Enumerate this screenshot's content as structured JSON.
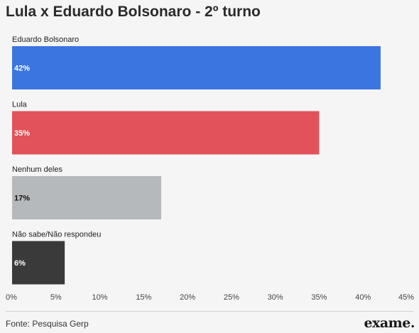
{
  "chart_data": {
    "type": "bar",
    "orientation": "horizontal",
    "title": "Lula x Eduardo Bolsonaro - 2º turno",
    "categories": [
      "Eduardo Bolsonaro",
      "Lula",
      "Nenhum deles",
      "Não sabe/Não respondeu"
    ],
    "values": [
      42,
      35,
      17,
      6
    ],
    "data_labels": [
      "42%",
      "35%",
      "17%",
      "6%"
    ],
    "colors": [
      "#3b76e0",
      "#e2525a",
      "#b6b9bb",
      "#3a3a3a"
    ],
    "label_colors": [
      "#ffffff",
      "#ffffff",
      "#111111",
      "#ffffff"
    ],
    "xlim": [
      0,
      45
    ],
    "xticks": [
      0,
      5,
      10,
      15,
      20,
      25,
      30,
      35,
      40,
      45
    ],
    "xtick_labels": [
      "0%",
      "5%",
      "10%",
      "15%",
      "20%",
      "25%",
      "30%",
      "35%",
      "40%",
      "45%"
    ],
    "grid": false,
    "legend": "none"
  },
  "footer": {
    "source": "Fonte: Pesquisa Gerp",
    "brand": "exame."
  }
}
